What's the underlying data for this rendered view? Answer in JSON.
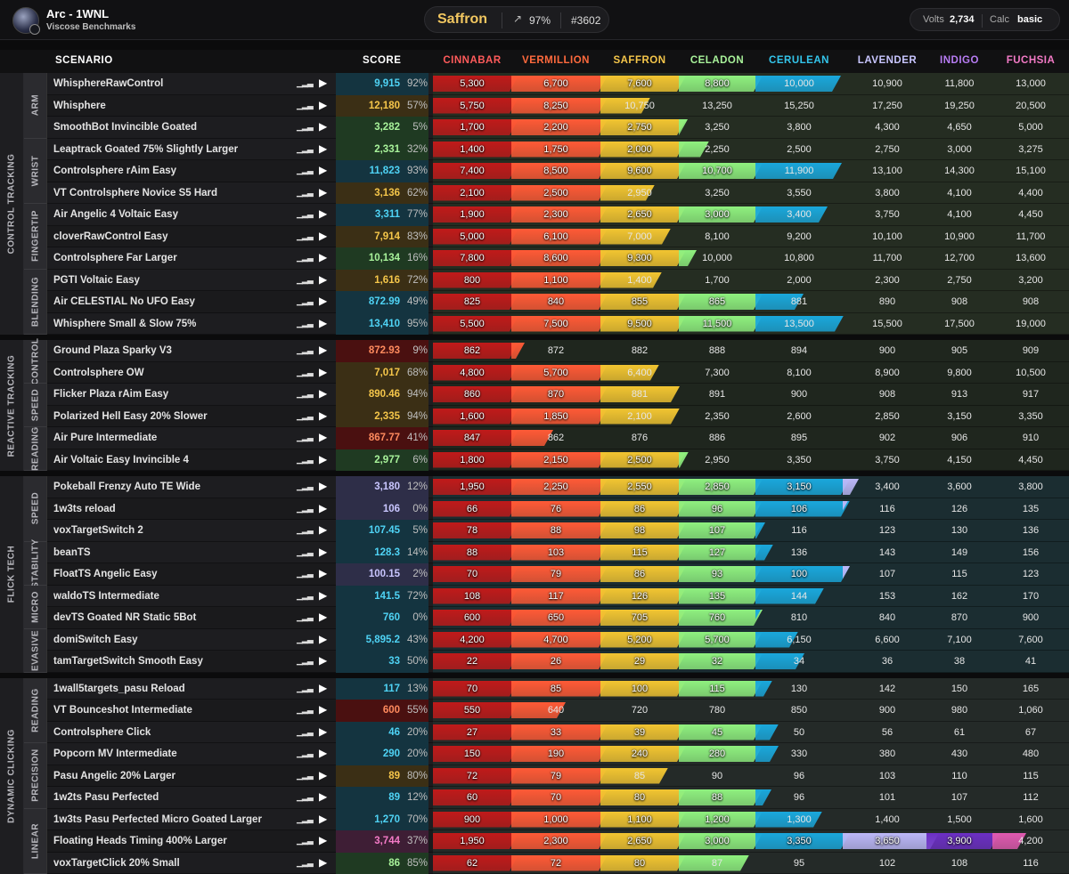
{
  "header": {
    "user": "Arc - 1WNL",
    "benchmark": "Viscose Benchmarks",
    "rank": "Saffron",
    "progress": "97%",
    "position": "#3602",
    "volts_label": "Volts",
    "volts_value": "2,734",
    "calc_label": "Calc",
    "calc_value": "basic"
  },
  "columns": {
    "scenario": "SCENARIO",
    "score": "SCORE"
  },
  "ranks": [
    {
      "name": "CINNABAR",
      "color": "#ff5b5b",
      "bar": "#c01a1a"
    },
    {
      "name": "VERMILLION",
      "color": "#ff6a3d",
      "bar": "#ff5a36"
    },
    {
      "name": "SAFFRON",
      "color": "#f5c64a",
      "bar": "#f2c531"
    },
    {
      "name": "CELADON",
      "color": "#a8f29a",
      "bar": "#8ff07f"
    },
    {
      "name": "CERULEAN",
      "color": "#34c6ec",
      "bar": "#1aa8dc"
    },
    {
      "name": "LAVENDER",
      "color": "#c9c6ff",
      "bar": "#bcb8f8"
    },
    {
      "name": "INDIGO",
      "color": "#b77cf3",
      "bar": "#6c2fc4"
    },
    {
      "name": "FUCHSIA",
      "color": "#f37ac6",
      "bar": "#e05ab0"
    }
  ],
  "groups": [
    {
      "name": "CONTROL TRACKING",
      "subgroups": [
        {
          "name": "ARM",
          "rows": [
            {
              "scenario": "WhisphereRawControl",
              "score": "9,915",
              "pct": "92%",
              "rank": 4,
              "thresholds": [
                "5,300",
                "6,700",
                "7,600",
                "8,800",
                "10,000",
                "10,900",
                "11,800",
                "13,000"
              ]
            },
            {
              "scenario": "Whisphere",
              "score": "12,180",
              "pct": "57%",
              "rank": 2,
              "thresholds": [
                "5,750",
                "8,250",
                "10,750",
                "13,250",
                "15,250",
                "17,250",
                "19,250",
                "20,500"
              ]
            },
            {
              "scenario": "SmoothBot Invincible Goated",
              "score": "3,282",
              "pct": "5%",
              "rank": 3,
              "thresholds": [
                "1,700",
                "2,200",
                "2,750",
                "3,250",
                "3,800",
                "4,300",
                "4,650",
                "5,000"
              ]
            }
          ]
        },
        {
          "name": "WRIST",
          "rows": [
            {
              "scenario": "Leaptrack Goated 75% Slightly Larger",
              "score": "2,331",
              "pct": "32%",
              "rank": 3,
              "thresholds": [
                "1,400",
                "1,750",
                "2,000",
                "2,250",
                "2,500",
                "2,750",
                "3,000",
                "3,275"
              ]
            },
            {
              "scenario": "Controlsphere rAim Easy",
              "score": "11,823",
              "pct": "93%",
              "rank": 4,
              "thresholds": [
                "7,400",
                "8,500",
                "9,600",
                "10,700",
                "11,900",
                "13,100",
                "14,300",
                "15,100"
              ]
            },
            {
              "scenario": "VT Controlsphere Novice S5 Hard",
              "score": "3,136",
              "pct": "62%",
              "rank": 2,
              "thresholds": [
                "2,100",
                "2,500",
                "2,950",
                "3,250",
                "3,550",
                "3,800",
                "4,100",
                "4,400"
              ]
            }
          ]
        },
        {
          "name": "FINGERTIP",
          "rows": [
            {
              "scenario": "Air Angelic 4 Voltaic Easy",
              "score": "3,311",
              "pct": "77%",
              "rank": 4,
              "thresholds": [
                "1,900",
                "2,300",
                "2,650",
                "3,000",
                "3,400",
                "3,750",
                "4,100",
                "4,450"
              ]
            },
            {
              "scenario": "cloverRawControl Easy",
              "score": "7,914",
              "pct": "83%",
              "rank": 2,
              "thresholds": [
                "5,000",
                "6,100",
                "7,000",
                "8,100",
                "9,200",
                "10,100",
                "10,900",
                "11,700"
              ]
            },
            {
              "scenario": "Controlsphere Far Larger",
              "score": "10,134",
              "pct": "16%",
              "rank": 3,
              "thresholds": [
                "7,800",
                "8,600",
                "9,300",
                "10,000",
                "10,800",
                "11,700",
                "12,700",
                "13,600"
              ]
            }
          ]
        },
        {
          "name": "BLENDING",
          "rows": [
            {
              "scenario": "PGTI Voltaic Easy",
              "score": "1,616",
              "pct": "72%",
              "rank": 2,
              "thresholds": [
                "800",
                "1,100",
                "1,400",
                "1,700",
                "2,000",
                "2,300",
                "2,750",
                "3,200"
              ]
            },
            {
              "scenario": "Air CELESTIAL No UFO Easy",
              "score": "872.99",
              "pct": "49%",
              "rank": 4,
              "thresholds": [
                "825",
                "840",
                "855",
                "865",
                "881",
                "890",
                "908",
                "908"
              ]
            },
            {
              "scenario": "Whisphere Small & Slow 75%",
              "score": "13,410",
              "pct": "95%",
              "rank": 4,
              "thresholds": [
                "5,500",
                "7,500",
                "9,500",
                "11,500",
                "13,500",
                "15,500",
                "17,500",
                "19,000"
              ]
            }
          ]
        }
      ]
    },
    {
      "name": "REACTIVE TRACKING",
      "subgroups": [
        {
          "name": "CONTROL",
          "rows": [
            {
              "scenario": "Ground Plaza Sparky V3",
              "score": "872.93",
              "pct": "9%",
              "rank": 1,
              "thresholds": [
                "862",
                "872",
                "882",
                "888",
                "894",
                "900",
                "905",
                "909"
              ]
            },
            {
              "scenario": "Controlsphere OW",
              "score": "7,017",
              "pct": "68%",
              "rank": 2,
              "thresholds": [
                "4,800",
                "5,700",
                "6,400",
                "7,300",
                "8,100",
                "8,900",
                "9,800",
                "10,500"
              ]
            }
          ]
        },
        {
          "name": "SPEED",
          "rows": [
            {
              "scenario": "Flicker Plaza rAim Easy",
              "score": "890.46",
              "pct": "94%",
              "rank": 2,
              "thresholds": [
                "860",
                "870",
                "881",
                "891",
                "900",
                "908",
                "913",
                "917"
              ]
            },
            {
              "scenario": "Polarized Hell Easy 20% Slower",
              "score": "2,335",
              "pct": "94%",
              "rank": 2,
              "thresholds": [
                "1,600",
                "1,850",
                "2,100",
                "2,350",
                "2,600",
                "2,850",
                "3,150",
                "3,350"
              ]
            }
          ]
        },
        {
          "name": "READING",
          "rows": [
            {
              "scenario": "Air Pure Intermediate",
              "score": "867.77",
              "pct": "41%",
              "rank": 1,
              "thresholds": [
                "847",
                "862",
                "876",
                "886",
                "895",
                "902",
                "906",
                "910"
              ]
            },
            {
              "scenario": "Air Voltaic Easy Invincible 4",
              "score": "2,977",
              "pct": "6%",
              "rank": 3,
              "thresholds": [
                "1,800",
                "2,150",
                "2,500",
                "2,950",
                "3,350",
                "3,750",
                "4,150",
                "4,450"
              ]
            }
          ]
        }
      ]
    },
    {
      "name": "FLICK TECH",
      "subgroups": [
        {
          "name": "SPEED",
          "rows": [
            {
              "scenario": "Pokeball Frenzy Auto TE Wide",
              "score": "3,180",
              "pct": "12%",
              "rank": 5,
              "thresholds": [
                "1,950",
                "2,250",
                "2,550",
                "2,850",
                "3,150",
                "3,400",
                "3,600",
                "3,800"
              ]
            },
            {
              "scenario": "1w3ts reload",
              "score": "106",
              "pct": "0%",
              "rank": 5,
              "thresholds": [
                "66",
                "76",
                "86",
                "96",
                "106",
                "116",
                "126",
                "135"
              ]
            },
            {
              "scenario": "voxTargetSwitch 2",
              "score": "107.45",
              "pct": "5%",
              "rank": 4,
              "thresholds": [
                "78",
                "88",
                "98",
                "107",
                "116",
                "123",
                "130",
                "136"
              ]
            }
          ]
        },
        {
          "name": "STABILITY",
          "rows": [
            {
              "scenario": "beanTS",
              "score": "128.3",
              "pct": "14%",
              "rank": 4,
              "thresholds": [
                "88",
                "103",
                "115",
                "127",
                "136",
                "143",
                "149",
                "156"
              ]
            },
            {
              "scenario": "FloatTS Angelic Easy",
              "score": "100.15",
              "pct": "2%",
              "rank": 5,
              "thresholds": [
                "70",
                "79",
                "86",
                "93",
                "100",
                "107",
                "115",
                "123"
              ]
            }
          ]
        },
        {
          "name": "MICRO",
          "rows": [
            {
              "scenario": "waldoTS Intermediate",
              "score": "141.5",
              "pct": "72%",
              "rank": 4,
              "thresholds": [
                "108",
                "117",
                "126",
                "135",
                "144",
                "153",
                "162",
                "170"
              ]
            },
            {
              "scenario": "devTS Goated NR Static 5Bot",
              "score": "760",
              "pct": "0%",
              "rank": 4,
              "thresholds": [
                "600",
                "650",
                "705",
                "760",
                "810",
                "840",
                "870",
                "900"
              ]
            }
          ]
        },
        {
          "name": "EVASIVE",
          "rows": [
            {
              "scenario": "domiSwitch Easy",
              "score": "5,895.2",
              "pct": "43%",
              "rank": 4,
              "thresholds": [
                "4,200",
                "4,700",
                "5,200",
                "5,700",
                "6,150",
                "6,600",
                "7,100",
                "7,600"
              ]
            },
            {
              "scenario": "tamTargetSwitch Smooth Easy",
              "score": "33",
              "pct": "50%",
              "rank": 4,
              "thresholds": [
                "22",
                "26",
                "29",
                "32",
                "34",
                "36",
                "38",
                "41"
              ]
            }
          ]
        }
      ]
    },
    {
      "name": "DYNAMIC CLICKING",
      "subgroups": [
        {
          "name": "READING",
          "rows": [
            {
              "scenario": "1wall5targets_pasu Reload",
              "score": "117",
              "pct": "13%",
              "rank": 4,
              "thresholds": [
                "70",
                "85",
                "100",
                "115",
                "130",
                "142",
                "150",
                "165"
              ]
            },
            {
              "scenario": "VT Bounceshot Intermediate",
              "score": "600",
              "pct": "55%",
              "rank": 1,
              "thresholds": [
                "550",
                "640",
                "720",
                "780",
                "850",
                "900",
                "980",
                "1,060"
              ]
            },
            {
              "scenario": "Controlsphere Click",
              "score": "46",
              "pct": "20%",
              "rank": 4,
              "thresholds": [
                "27",
                "33",
                "39",
                "45",
                "50",
                "56",
                "61",
                "67"
              ]
            }
          ]
        },
        {
          "name": "PRECISION",
          "rows": [
            {
              "scenario": "Popcorn MV Intermediate",
              "score": "290",
              "pct": "20%",
              "rank": 4,
              "thresholds": [
                "150",
                "190",
                "240",
                "280",
                "330",
                "380",
                "430",
                "480"
              ]
            },
            {
              "scenario": "Pasu Angelic 20% Larger",
              "score": "89",
              "pct": "80%",
              "rank": 2,
              "thresholds": [
                "72",
                "79",
                "85",
                "90",
                "96",
                "103",
                "110",
                "115"
              ]
            },
            {
              "scenario": "1w2ts Pasu Perfected",
              "score": "89",
              "pct": "12%",
              "rank": 4,
              "thresholds": [
                "60",
                "70",
                "80",
                "88",
                "96",
                "101",
                "107",
                "112"
              ]
            }
          ]
        },
        {
          "name": "LINEAR",
          "rows": [
            {
              "scenario": "1w3ts Pasu Perfected Micro Goated Larger",
              "score": "1,270",
              "pct": "70%",
              "rank": 4,
              "thresholds": [
                "900",
                "1,000",
                "1,100",
                "1,200",
                "1,300",
                "1,400",
                "1,500",
                "1,600"
              ]
            },
            {
              "scenario": "Floating Heads Timing 400% Larger",
              "score": "3,744",
              "pct": "37%",
              "rank": 7,
              "thresholds": [
                "1,950",
                "2,300",
                "2,650",
                "3,000",
                "3,350",
                "3,650",
                "3,900",
                "4,200"
              ]
            },
            {
              "scenario": "voxTargetClick 20% Small",
              "score": "86",
              "pct": "85%",
              "rank": 3,
              "thresholds": [
                "62",
                "72",
                "80",
                "87",
                "95",
                "102",
                "108",
                "116"
              ]
            }
          ]
        }
      ]
    }
  ],
  "icons": {
    "bars": "signal-bars-icon",
    "play": "play-icon",
    "trend": "trend-up-icon"
  }
}
